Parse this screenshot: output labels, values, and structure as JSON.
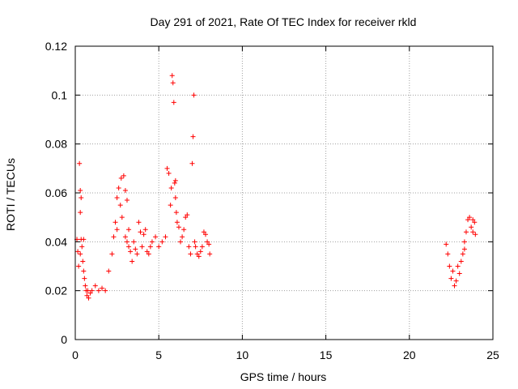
{
  "chart_data": {
    "type": "scatter",
    "title": "Day 291 of 2021, Rate Of TEC Index for receiver rkld",
    "xlabel": "GPS time / hours",
    "ylabel": "ROTI / TECUs",
    "xlim": [
      0,
      25
    ],
    "ylim": [
      0,
      0.12
    ],
    "x_ticks": [
      0,
      5,
      10,
      15,
      20,
      25
    ],
    "x_tick_labels": [
      "0",
      "5",
      "10",
      "15",
      "20",
      "25"
    ],
    "y_ticks": [
      0,
      0.02,
      0.04,
      0.06,
      0.08,
      0.1,
      0.12
    ],
    "y_tick_labels": [
      "0",
      "0.02",
      "0.04",
      "0.06",
      "0.08",
      "0.1",
      "0.12"
    ],
    "grid": true,
    "marker": "plus",
    "color": "#ff0000",
    "series": [
      {
        "x": [
          0.1,
          0.15,
          0.2,
          0.25,
          0.3,
          0.3,
          0.3,
          0.35,
          0.35,
          0.4,
          0.45,
          0.5,
          0.5,
          0.55,
          0.6,
          0.65,
          0.7,
          0.75,
          0.8,
          0.9,
          1.0,
          1.2,
          1.4,
          1.6,
          1.8,
          2.0,
          2.2,
          2.3,
          2.4,
          2.5,
          2.5,
          2.6,
          2.7,
          2.75,
          2.8,
          2.9,
          3.0,
          3.0,
          3.1,
          3.1,
          3.2,
          3.2,
          3.3,
          3.4,
          3.5,
          3.6,
          3.7,
          3.8,
          3.9,
          4.0,
          4.1,
          4.2,
          4.3,
          4.4,
          4.5,
          4.6,
          4.8,
          5.0,
          5.2,
          5.4,
          5.5,
          5.6,
          5.7,
          5.75,
          5.8,
          5.85,
          5.9,
          5.95,
          6.0,
          6.0,
          6.05,
          6.1,
          6.2,
          6.3,
          6.4,
          6.5,
          6.6,
          6.7,
          6.8,
          6.9,
          7.0,
          7.05,
          7.1,
          7.15,
          7.2,
          7.3,
          7.4,
          7.5,
          7.6,
          7.7,
          7.8,
          7.9,
          8.0,
          8.05,
          22.2,
          22.3,
          22.4,
          22.5,
          22.6,
          22.7,
          22.8,
          22.9,
          23.0,
          23.1,
          23.2,
          23.3,
          23.3,
          23.4,
          23.5,
          23.6,
          23.7,
          23.8,
          23.8,
          23.9,
          23.95
        ],
        "y": [
          0.041,
          0.036,
          0.03,
          0.072,
          0.061,
          0.052,
          0.035,
          0.058,
          0.041,
          0.038,
          0.032,
          0.041,
          0.028,
          0.025,
          0.022,
          0.02,
          0.018,
          0.02,
          0.017,
          0.019,
          0.02,
          0.022,
          0.02,
          0.021,
          0.02,
          0.028,
          0.035,
          0.042,
          0.048,
          0.058,
          0.045,
          0.062,
          0.055,
          0.066,
          0.05,
          0.067,
          0.061,
          0.042,
          0.057,
          0.04,
          0.045,
          0.038,
          0.036,
          0.032,
          0.04,
          0.037,
          0.035,
          0.048,
          0.044,
          0.038,
          0.043,
          0.045,
          0.036,
          0.035,
          0.038,
          0.04,
          0.042,
          0.038,
          0.04,
          0.042,
          0.07,
          0.068,
          0.055,
          0.062,
          0.108,
          0.105,
          0.097,
          0.064,
          0.058,
          0.065,
          0.052,
          0.048,
          0.046,
          0.04,
          0.042,
          0.045,
          0.05,
          0.051,
          0.038,
          0.035,
          0.072,
          0.083,
          0.1,
          0.04,
          0.038,
          0.035,
          0.034,
          0.036,
          0.038,
          0.044,
          0.043,
          0.04,
          0.039,
          0.035,
          0.039,
          0.035,
          0.03,
          0.025,
          0.028,
          0.022,
          0.024,
          0.03,
          0.027,
          0.032,
          0.035,
          0.037,
          0.04,
          0.044,
          0.049,
          0.05,
          0.046,
          0.044,
          0.049,
          0.048,
          0.043
        ]
      }
    ]
  }
}
